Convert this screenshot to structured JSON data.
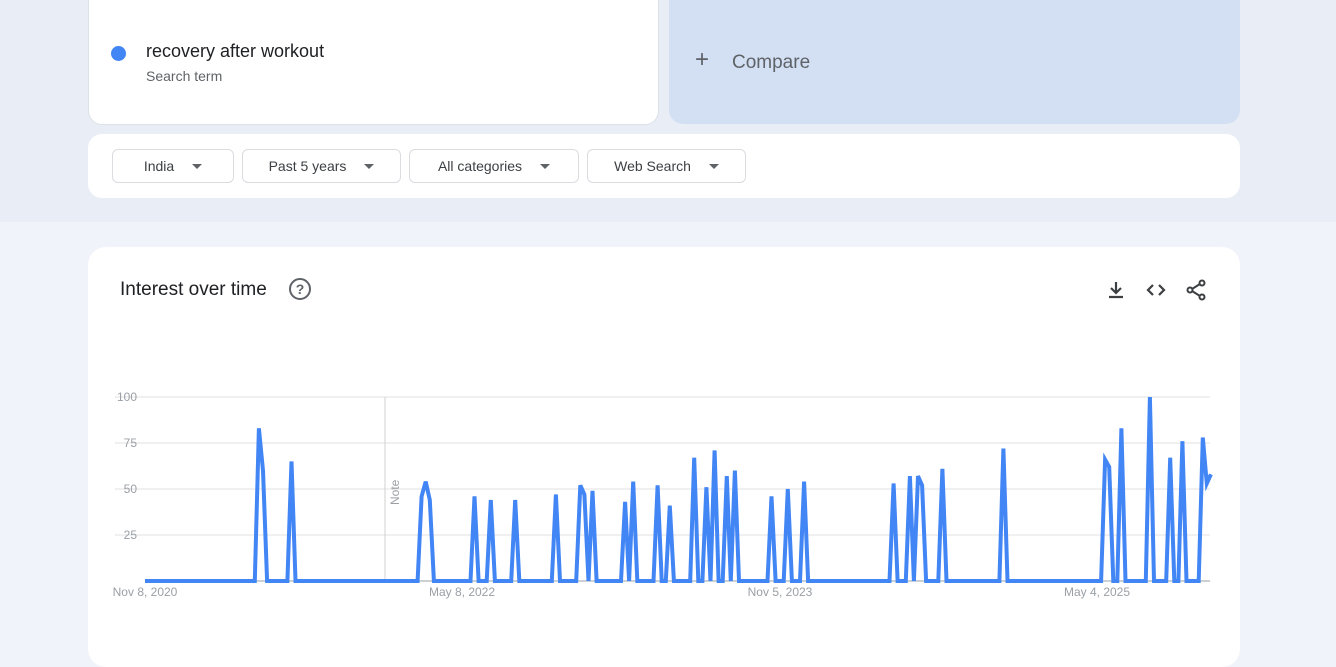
{
  "search_term": {
    "name": "recovery after workout",
    "subtitle": "Search term",
    "color": "#4285f4"
  },
  "compare": {
    "icon": "plus-icon",
    "label": "Compare"
  },
  "filters": [
    {
      "label": "India"
    },
    {
      "label": "Past 5 years"
    },
    {
      "label": "All categories"
    },
    {
      "label": "Web Search"
    }
  ],
  "chart_card": {
    "title": "Interest over time",
    "help_icon": "help-circle-icon",
    "actions": [
      "download-icon",
      "embed-code-icon",
      "share-icon"
    ]
  },
  "chart_data": {
    "type": "line",
    "x_frequency": "weekly",
    "x_start": "Nov 8, 2020",
    "x_tick_labels": [
      "Nov 8, 2020",
      "May 8, 2022",
      "Nov 5, 2023",
      "May 4, 2025"
    ],
    "y_tick_labels": [
      "25",
      "50",
      "75",
      "100"
    ],
    "ylim": [
      0,
      100
    ],
    "grid": true,
    "line_color": "#4285f4",
    "annotation": {
      "label": "Note",
      "date": "Dec 26, 2021"
    },
    "series": [
      {
        "name": "recovery after workout",
        "values": [
          0,
          0,
          0,
          0,
          0,
          0,
          0,
          0,
          0,
          0,
          0,
          0,
          0,
          0,
          0,
          0,
          0,
          0,
          0,
          0,
          0,
          0,
          0,
          0,
          0,
          0,
          0,
          0,
          83,
          60,
          0,
          0,
          0,
          0,
          0,
          0,
          65,
          0,
          0,
          0,
          0,
          0,
          0,
          0,
          0,
          0,
          0,
          0,
          0,
          0,
          0,
          0,
          0,
          0,
          0,
          0,
          0,
          0,
          0,
          0,
          0,
          0,
          0,
          0,
          0,
          0,
          0,
          0,
          46,
          54,
          44,
          0,
          0,
          0,
          0,
          0,
          0,
          0,
          0,
          0,
          0,
          46,
          0,
          0,
          0,
          44,
          0,
          0,
          0,
          0,
          0,
          44,
          0,
          0,
          0,
          0,
          0,
          0,
          0,
          0,
          0,
          47,
          0,
          0,
          0,
          0,
          0,
          52,
          47,
          0,
          49,
          0,
          0,
          0,
          0,
          0,
          0,
          0,
          43,
          0,
          54,
          0,
          0,
          0,
          0,
          0,
          52,
          0,
          0,
          41,
          0,
          0,
          0,
          0,
          0,
          67,
          0,
          0,
          51,
          0,
          71,
          0,
          0,
          57,
          0,
          60,
          0,
          0,
          0,
          0,
          0,
          0,
          0,
          0,
          46,
          0,
          0,
          0,
          50,
          0,
          0,
          0,
          54,
          0,
          0,
          0,
          0,
          0,
          0,
          0,
          0,
          0,
          0,
          0,
          0,
          0,
          0,
          0,
          0,
          0,
          0,
          0,
          0,
          0,
          53,
          0,
          0,
          0,
          57,
          0,
          57,
          52,
          0,
          0,
          0,
          0,
          61,
          0,
          0,
          0,
          0,
          0,
          0,
          0,
          0,
          0,
          0,
          0,
          0,
          0,
          0,
          72,
          0,
          0,
          0,
          0,
          0,
          0,
          0,
          0,
          0,
          0,
          0,
          0,
          0,
          0,
          0,
          0,
          0,
          0,
          0,
          0,
          0,
          0,
          0,
          0,
          66,
          62,
          0,
          0,
          83,
          0,
          0,
          0,
          0,
          0,
          0,
          100,
          0,
          0,
          0,
          0,
          67,
          0,
          0,
          76,
          0,
          0,
          0,
          0,
          78,
          53,
          58
        ]
      }
    ]
  }
}
